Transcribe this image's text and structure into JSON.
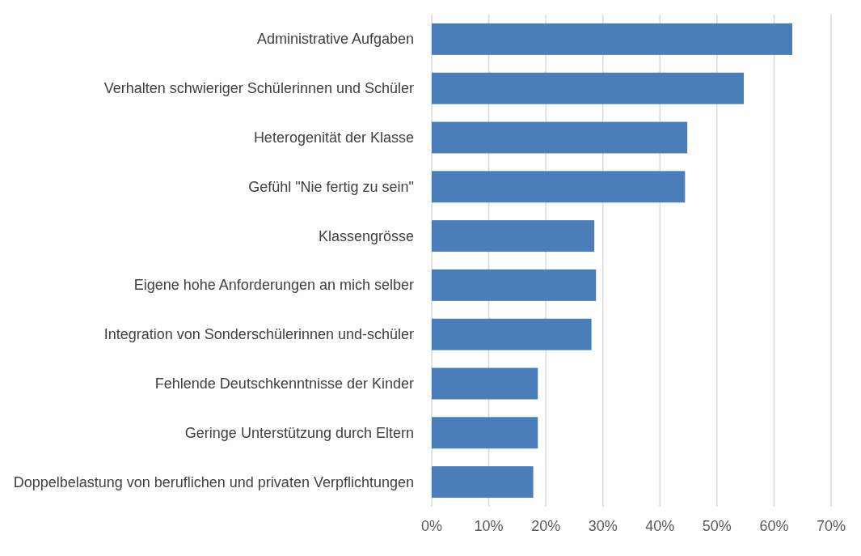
{
  "chart_data": {
    "type": "bar",
    "orientation": "horizontal",
    "categories": [
      "Administrative Aufgaben",
      "Verhalten schwieriger Schülerinnen und Schüler",
      "Heterogenität der Klasse",
      "Gefühl \"Nie fertig zu sein\"",
      "Klassengrösse",
      "Eigene hohe Anforderungen an mich selber",
      "Integration von Sonderschülerinnen und-schüler",
      "Fehlende Deutschkenntnisse der Kinder",
      "Geringe Unterstützung durch Eltern",
      "Doppelbelastung von beruflichen und privaten Verpflichtungen"
    ],
    "values": [
      63.2,
      54.7,
      44.8,
      44.4,
      28.5,
      28.8,
      28.0,
      18.6,
      18.6,
      17.8
    ],
    "color": "#4a7ebb",
    "xlim": [
      0,
      70
    ],
    "xticks": [
      {
        "value": 0,
        "label": "0%"
      },
      {
        "value": 10,
        "label": "10%"
      },
      {
        "value": 20,
        "label": "20%"
      },
      {
        "value": 30,
        "label": "30%"
      },
      {
        "value": 40,
        "label": "40%"
      },
      {
        "value": 50,
        "label": "50%"
      },
      {
        "value": 60,
        "label": "60%"
      },
      {
        "value": 70,
        "label": "70%"
      }
    ],
    "grid": "x"
  }
}
